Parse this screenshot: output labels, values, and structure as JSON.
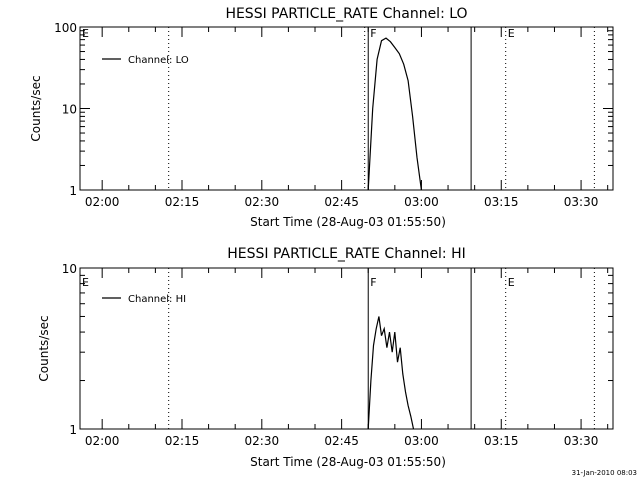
{
  "chart_data": [
    {
      "type": "line",
      "title": "HESSI PARTICLE_RATE Channel: LO",
      "xlabel": "Start Time (28-Aug-03 01:55:50)",
      "ylabel": "Counts/sec",
      "yscale": "log",
      "ylim": [
        1,
        100
      ],
      "xlim": [
        "01:55:50",
        "03:36:00"
      ],
      "y_tick_labels": [
        "1",
        "10",
        "100"
      ],
      "x_tick_labels": [
        "02:00",
        "02:15",
        "02:30",
        "02:45",
        "03:00",
        "03:15",
        "03:30"
      ],
      "legend": {
        "label": "Channel: LO",
        "placement": "top-left"
      },
      "grid": false,
      "series": [
        {
          "name": "Channel: LO",
          "x": [
            "02:50:00",
            "02:50:50",
            "02:51:40",
            "02:52:30",
            "02:53:20",
            "02:54:10",
            "02:55:00",
            "02:55:50",
            "02:56:40",
            "02:57:30",
            "02:58:20",
            "02:59:10",
            "03:00:00"
          ],
          "y": [
            1,
            10,
            40,
            68,
            73,
            66,
            56,
            47,
            35,
            22,
            8,
            2.5,
            1
          ]
        }
      ],
      "markers": [
        {
          "label": "E",
          "x": "01:55:50",
          "style": "dotted"
        },
        {
          "x": "02:12:30",
          "style": "dotted"
        },
        {
          "x": "02:49:20",
          "style": "dotted"
        },
        {
          "label": "F",
          "x": "02:50:00",
          "style": "solid"
        },
        {
          "x": "03:09:20",
          "style": "solid"
        },
        {
          "label": "E",
          "x": "03:15:50",
          "style": "dotted"
        },
        {
          "x": "03:32:30",
          "style": "dotted"
        }
      ]
    },
    {
      "type": "line",
      "title": "HESSI PARTICLE_RATE Channel: HI",
      "xlabel": "Start Time (28-Aug-03 01:55:50)",
      "ylabel": "Counts/sec",
      "yscale": "log",
      "ylim": [
        1,
        10
      ],
      "xlim": [
        "01:55:50",
        "03:36:00"
      ],
      "y_tick_labels": [
        "1",
        "10"
      ],
      "x_tick_labels": [
        "02:00",
        "02:15",
        "02:30",
        "02:45",
        "03:00",
        "03:15",
        "03:30"
      ],
      "legend": {
        "label": "Channel: HI",
        "placement": "top-left"
      },
      "grid": false,
      "series": [
        {
          "name": "Channel: HI",
          "x": [
            "02:50:00",
            "02:50:30",
            "02:51:00",
            "02:51:30",
            "02:52:00",
            "02:52:30",
            "02:53:00",
            "02:53:30",
            "02:54:00",
            "02:54:30",
            "02:55:00",
            "02:55:30",
            "02:56:00",
            "02:56:30",
            "02:57:00",
            "02:57:30",
            "02:58:00",
            "02:58:30"
          ],
          "y": [
            1,
            2.0,
            3.3,
            4.2,
            5.0,
            3.8,
            4.2,
            3.2,
            4.0,
            3.0,
            4.0,
            2.6,
            3.2,
            2.2,
            1.7,
            1.4,
            1.2,
            1
          ]
        }
      ],
      "markers": [
        {
          "label": "E",
          "x": "01:55:50",
          "style": "dotted"
        },
        {
          "x": "02:12:30",
          "style": "dotted"
        },
        {
          "label": "F",
          "x": "02:50:00",
          "style": "solid"
        },
        {
          "x": "03:09:20",
          "style": "solid"
        },
        {
          "label": "E",
          "x": "03:15:50",
          "style": "dotted"
        },
        {
          "x": "03:32:30",
          "style": "dotted"
        }
      ]
    }
  ],
  "footer": {
    "timestamp": "31-Jan-2010 08:03"
  }
}
